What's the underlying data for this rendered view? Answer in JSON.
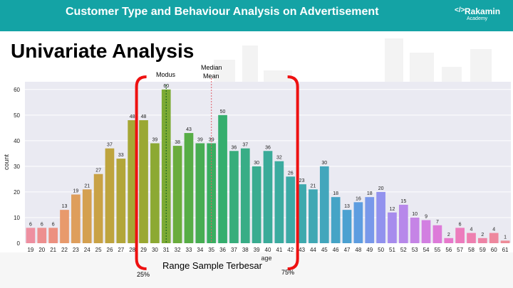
{
  "header": {
    "title": "Customer Type and Behaviour Analysis on Advertisement"
  },
  "brand": {
    "name": "Rakamin",
    "sub": "Academy",
    "mark": "</>"
  },
  "slide_title": "Univariate Analysis",
  "annotations": {
    "modus": "Modus",
    "median": "Median",
    "mean": "Mean",
    "range": "Range Sample Terbesar",
    "p25": "25%",
    "p75": "75%"
  },
  "chart_data": {
    "type": "bar",
    "xlabel": "age",
    "ylabel": "count",
    "ylim": [
      0,
      63
    ],
    "yticks": [
      0,
      10,
      20,
      30,
      40,
      50,
      60
    ],
    "grid": true,
    "categories": [
      "19",
      "20",
      "21",
      "22",
      "23",
      "24",
      "25",
      "26",
      "27",
      "28",
      "29",
      "30",
      "31",
      "32",
      "33",
      "34",
      "35",
      "36",
      "37",
      "38",
      "39",
      "40",
      "41",
      "42",
      "43",
      "44",
      "45",
      "46",
      "47",
      "48",
      "49",
      "50",
      "51",
      "52",
      "53",
      "54",
      "55",
      "56",
      "57",
      "58",
      "59",
      "60",
      "61"
    ],
    "values": [
      6,
      6,
      6,
      13,
      19,
      21,
      27,
      37,
      33,
      48,
      48,
      39,
      60,
      38,
      43,
      39,
      39,
      50,
      36,
      37,
      30,
      36,
      32,
      26,
      23,
      21,
      30,
      18,
      13,
      16,
      18,
      20,
      12,
      15,
      10,
      9,
      7,
      2,
      6,
      4,
      2,
      4,
      1
    ],
    "colors": [
      "#ee8fa0",
      "#ed8f8f",
      "#ec9080",
      "#e89a6c",
      "#de9e5c",
      "#d4a04f",
      "#c9a245",
      "#bea43e",
      "#b2a639",
      "#a6a735",
      "#9aa833",
      "#8ca933",
      "#7caa35",
      "#6aac3c",
      "#57ad46",
      "#47ad53",
      "#3aae60",
      "#35ae6e",
      "#37ad7b",
      "#38ad86",
      "#39ac90",
      "#3aab99",
      "#3bab9f",
      "#3caaa6",
      "#3ea9ad",
      "#40a8b4",
      "#42a6bc",
      "#45a4c6",
      "#4ba1d1",
      "#5d9de0",
      "#7898ea",
      "#9292ee",
      "#a78ced",
      "#b788ea",
      "#c584e6",
      "#d27fe1",
      "#dd7ad9",
      "#e779cc",
      "#ec7cbd",
      "#ee80b0",
      "#ee84a6",
      "#ee889e",
      "#ee8b97"
    ]
  }
}
